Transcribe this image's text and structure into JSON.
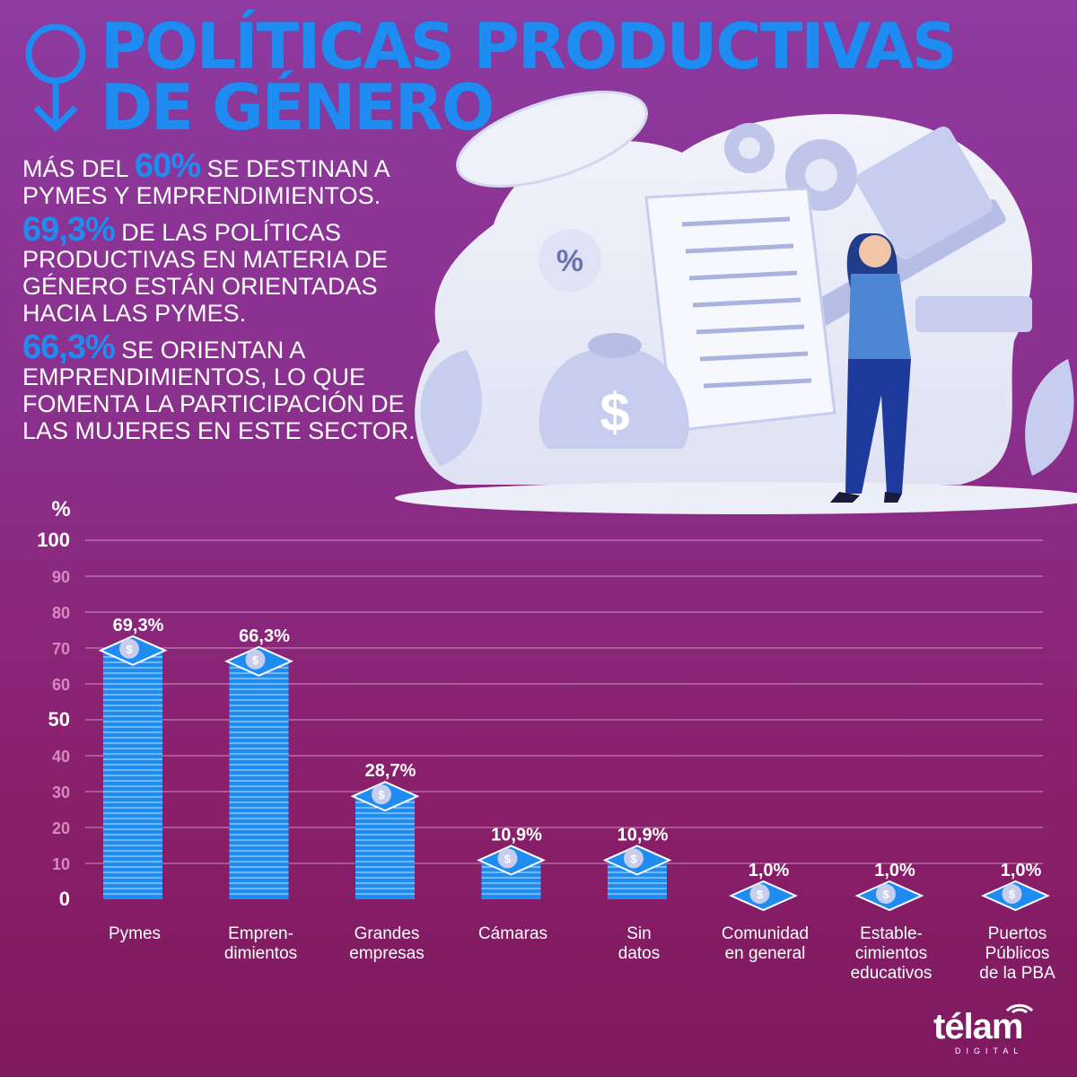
{
  "header": {
    "title_line1": "POLÍTICAS PRODUCTIVAS",
    "title_line2": "DE GÉNERO"
  },
  "intro": {
    "p1_pre": "MÁS DEL ",
    "p1_hl": "60%",
    "p1_post": " SE DESTINAN A PYMES Y EMPRENDIMIENTOS.",
    "p2_hl": "69,3%",
    "p2_post": " DE LAS POLÍTICAS PRODUCTIVAS EN MATERIA DE GÉNERO ESTÁN ORIENTADAS HACIA LAS PYMES.",
    "p3_hl": "66,3%",
    "p3_post": " SE ORIENTAN A EMPRENDIMIENTOS, LO QUE FOMENTA LA PARTICIPACIÓN DE LAS MUJERES EN ESTE SECTOR."
  },
  "illustration": {
    "percent_symbol": "%",
    "dollar_symbol": "$"
  },
  "chart_data": {
    "type": "bar",
    "ylabel": "%",
    "ylim": [
      0,
      100
    ],
    "yticks": [
      "0",
      "10",
      "20",
      "30",
      "40",
      "50",
      "60",
      "70",
      "80",
      "90",
      "100"
    ],
    "grid": true,
    "categories": [
      [
        "Pymes"
      ],
      [
        "Empren-",
        "dimientos"
      ],
      [
        "Grandes",
        "empresas"
      ],
      [
        "Cámaras"
      ],
      [
        "Sin",
        "datos"
      ],
      [
        "Comunidad",
        "en general"
      ],
      [
        "Estable-",
        "cimientos",
        "educativos"
      ],
      [
        "Puertos",
        "Públicos",
        "de la PBA"
      ]
    ],
    "values": [
      69.3,
      66.3,
      28.7,
      10.9,
      10.9,
      1.0,
      1.0,
      1.0
    ],
    "value_labels": [
      "69,3%",
      "66,3%",
      "28,7%",
      "10,9%",
      "10,9%",
      "1,0%",
      "1,0%",
      "1,0%"
    ],
    "bar_color": "#1e8cf0"
  },
  "logo": {
    "name": "télam",
    "sub": "DIGITAL"
  }
}
